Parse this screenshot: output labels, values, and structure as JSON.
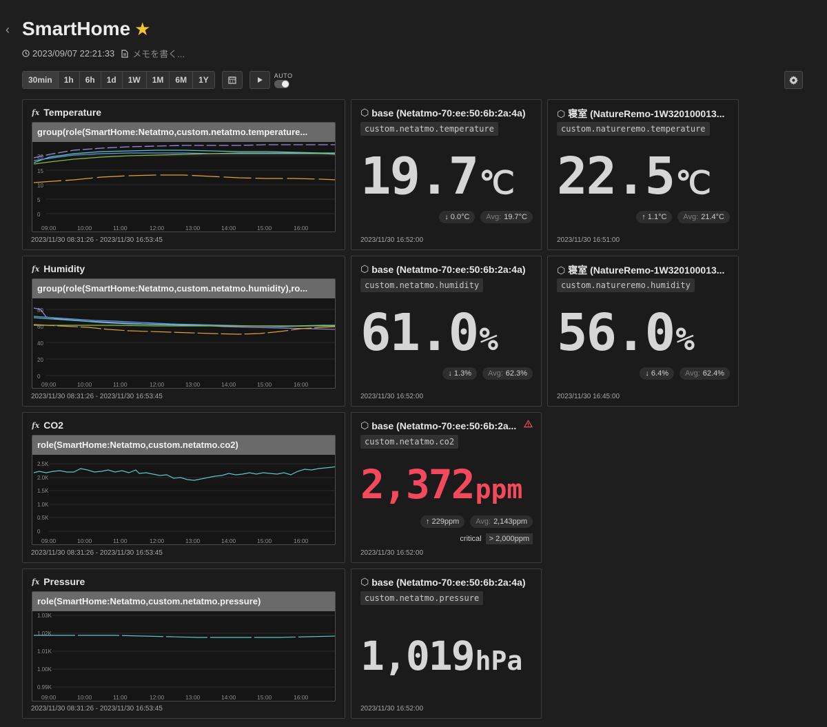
{
  "header": {
    "title": "SmartHome",
    "datetime": "2023/09/07 22:21:33",
    "memo_placeholder": "メモを書く..."
  },
  "toolbar": {
    "ranges": [
      "30min",
      "1h",
      "6h",
      "1d",
      "1W",
      "1M",
      "6M",
      "1Y"
    ],
    "auto_label": "AUTO"
  },
  "charts": {
    "x_ticks": [
      "09:00",
      "10:00",
      "11:00",
      "12:00",
      "13:00",
      "14:00",
      "15:00",
      "16:00"
    ],
    "time_range": "2023/11/30 08:31:26 - 2023/11/30 16:53:45",
    "temperature": {
      "title": "Temperature",
      "query": "group(role(SmartHome:Netatmo,custom.netatmo.temperature...",
      "y_ticks": [
        "20",
        "15",
        "10",
        "5",
        "0"
      ]
    },
    "humidity": {
      "title": "Humidity",
      "query": "group(role(SmartHome:Netatmo,custom.netatmo.humidity),ro...",
      "y_ticks": [
        "80",
        "60",
        "40",
        "20",
        "0"
      ]
    },
    "co2": {
      "title": "CO2",
      "query": "role(SmartHome:Netatmo,custom.netatmo.co2)",
      "y_ticks": [
        "2.5K",
        "2.0K",
        "1.5K",
        "1.0K",
        "0.5K",
        "0"
      ]
    },
    "pressure": {
      "title": "Pressure",
      "query": "role(SmartHome:Netatmo,custom.netatmo.pressure)",
      "y_ticks": [
        "1.03K",
        "1.02K",
        "1.01K",
        "1.00K",
        "0.99K"
      ]
    }
  },
  "stats": {
    "temp_base": {
      "title": "base (Netatmo-70:ee:50:6b:2a:4a)",
      "metric": "custom.netatmo.temperature",
      "value": "19.7",
      "unit": "℃",
      "delta": "0.0°C",
      "avg_label": "Avg:",
      "avg": "19.7°C",
      "time": "2023/11/30 16:52:00"
    },
    "temp_remo": {
      "title": "寝室 (NatureRemo-1W320100013...",
      "metric": "custom.natureremo.temperature",
      "value": "22.5",
      "unit": "℃",
      "delta": "1.1°C",
      "avg_label": "Avg:",
      "avg": "21.4°C",
      "time": "2023/11/30 16:51:00"
    },
    "hum_base": {
      "title": "base (Netatmo-70:ee:50:6b:2a:4a)",
      "metric": "custom.netatmo.humidity",
      "value": "61.0",
      "unit": "%",
      "delta": "1.3%",
      "avg_label": "Avg:",
      "avg": "62.3%",
      "time": "2023/11/30 16:52:00"
    },
    "hum_remo": {
      "title": "寝室 (NatureRemo-1W320100013...",
      "metric": "custom.natureremo.humidity",
      "value": "56.0",
      "unit": "%",
      "delta": "6.4%",
      "avg_label": "Avg:",
      "avg": "62.4%",
      "time": "2023/11/30 16:45:00"
    },
    "co2_base": {
      "title": "base (Netatmo-70:ee:50:6b:2a...",
      "metric": "custom.netatmo.co2",
      "value": "2,372",
      "unit": "ppm",
      "delta": "229ppm",
      "avg_label": "Avg:",
      "avg": "2,143ppm",
      "critical_label": "critical",
      "critical_threshold": "> 2,000ppm",
      "time": "2023/11/30 16:52:00"
    },
    "pres_base": {
      "title": "base (Netatmo-70:ee:50:6b:2a:4a)",
      "metric": "custom.netatmo.pressure",
      "value": "1,019",
      "unit": "hPa",
      "time": "2023/11/30 16:52:00"
    }
  },
  "colors": {
    "critical": "#f2495c",
    "series_teal": "#5fc6c6",
    "series_purple": "#9d8ae0",
    "series_orange": "#e0a13a",
    "series_green": "#8ab84a",
    "series_blue": "#5b9fe0"
  }
}
